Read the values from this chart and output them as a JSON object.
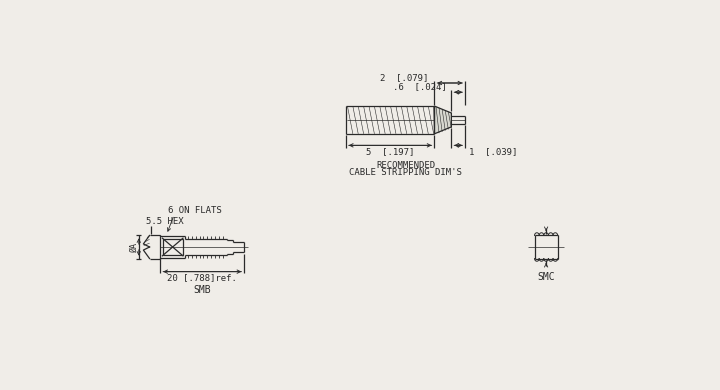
{
  "bg_color": "#f0ede8",
  "line_color": "#2a2a2a",
  "cable_strip": {
    "label1": "2  [.079]",
    "label2": ".6  [.024]",
    "label3": "5  [.197]",
    "label4": "1  [.039]",
    "caption_line1": "RECOMMENDED",
    "caption_line2": "CABLE STRIPPING DIM'S"
  },
  "main_connector": {
    "label_hex": "5.5 HEX",
    "label_flats": "6 ON FLATS",
    "label_dim": "20 [.788]ref.",
    "label_smb": "SMB",
    "label_phia": "ØA"
  },
  "smc_label": "SMC"
}
